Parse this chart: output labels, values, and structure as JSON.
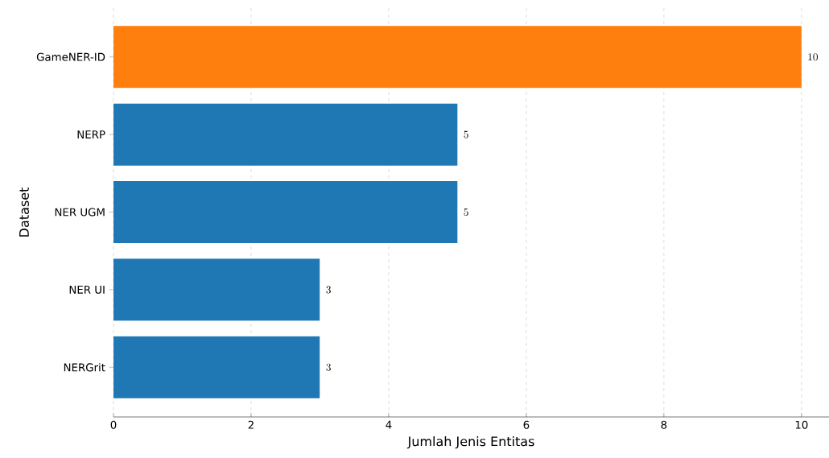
{
  "chart_data": {
    "type": "bar",
    "orientation": "horizontal",
    "xlabel": "Jumlah Jenis Entitas",
    "ylabel": "Dataset",
    "categories": [
      "GameNER-ID",
      "NERP",
      "NER UGM",
      "NER UI",
      "NERGrit"
    ],
    "values": [
      10,
      5,
      5,
      3,
      3
    ],
    "colors": [
      "#ff7f0e",
      "#1f77b4",
      "#1f77b4",
      "#1f77b4",
      "#1f77b4"
    ],
    "xlim": [
      0,
      10.4
    ],
    "xticks": [
      0,
      2,
      4,
      6,
      8,
      10
    ],
    "grid": "x",
    "data_labels": true
  }
}
